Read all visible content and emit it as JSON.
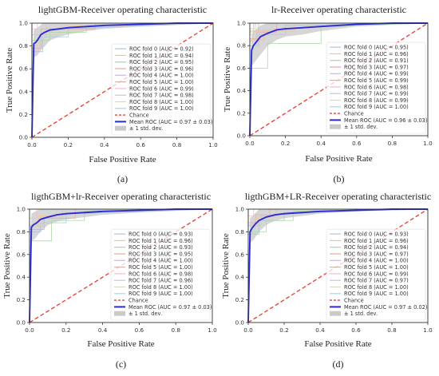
{
  "chart_data": [
    {
      "type": "line",
      "title": "lightGBM-Receiver operating characteristic",
      "xlabel": "False Positive Rate",
      "ylabel": "True Positive Rate",
      "caption": "(a)",
      "xlim": [
        0.0,
        1.0
      ],
      "ylim": [
        0.0,
        1.0
      ],
      "xticks": [
        "0.0",
        "0.2",
        "0.4",
        "0.6",
        "0.8",
        "1.0"
      ],
      "yticks": [
        "0.0",
        "0.2",
        "0.4",
        "0.6",
        "0.8",
        "1.0"
      ],
      "grid": false,
      "legend_position": "lower-right",
      "legend": [
        "ROC fold 0 (AUC = 0.92)",
        "ROC fold 1 (AUC = 0.94)",
        "ROC fold 2 (AUC = 0.95)",
        "ROC fold 3 (AUC = 0.96)",
        "ROC fold 4 (AUC = 1.00)",
        "ROC fold 5 (AUC = 1.00)",
        "ROC fold 6 (AUC = 0.99)",
        "ROC fold 7 (AUC = 0.98)",
        "ROC fold 8 (AUC = 1.00)",
        "ROC fold 9 (AUC = 1.00)",
        "Chance",
        "Mean ROC (AUC = 0.97 ± 0.03)",
        "± 1 std. dev."
      ],
      "mean_roc": {
        "x": [
          0.0,
          0.01,
          0.02,
          0.03,
          0.05,
          0.07,
          0.1,
          0.15,
          0.2,
          0.3,
          0.4,
          0.6,
          0.8,
          1.0
        ],
        "y": [
          0.0,
          0.82,
          0.83,
          0.85,
          0.9,
          0.92,
          0.94,
          0.95,
          0.96,
          0.97,
          0.98,
          0.99,
          1.0,
          1.0
        ]
      },
      "std_band": {
        "x": [
          0.0,
          0.01,
          0.03,
          0.06,
          0.1,
          0.15,
          0.2,
          0.3,
          0.4,
          0.6,
          1.0
        ],
        "upper": [
          0.0,
          0.94,
          0.96,
          1.0,
          1.0,
          1.0,
          1.0,
          1.0,
          1.0,
          1.0,
          1.0
        ],
        "lower": [
          0.0,
          0.7,
          0.72,
          0.78,
          0.85,
          0.88,
          0.9,
          0.93,
          0.95,
          0.97,
          1.0
        ]
      },
      "folds": [
        {
          "x": [
            0,
            0,
            0.06,
            0.06,
            0.2,
            0.2,
            1
          ],
          "y": [
            0,
            0.75,
            0.75,
            0.88,
            0.88,
            0.95,
            1
          ]
        },
        {
          "x": [
            0,
            0,
            0.04,
            0.04,
            0.15,
            0.15,
            1
          ],
          "y": [
            0,
            0.8,
            0.8,
            0.9,
            0.9,
            0.97,
            1
          ]
        },
        {
          "x": [
            0,
            0,
            0.1,
            0.1,
            0.3,
            0.3,
            1
          ],
          "y": [
            0,
            0.85,
            0.85,
            0.92,
            0.92,
            0.98,
            1
          ]
        },
        {
          "x": [
            0,
            0,
            0.05,
            0.05,
            0.35,
            0.35,
            1
          ],
          "y": [
            0,
            0.78,
            0.78,
            0.95,
            0.95,
            1,
            1
          ]
        },
        {
          "x": [
            0,
            0,
            1
          ],
          "y": [
            0,
            1,
            1
          ]
        },
        {
          "x": [
            0,
            0,
            1
          ],
          "y": [
            0,
            1,
            1
          ]
        },
        {
          "x": [
            0,
            0,
            0.03,
            0.03,
            1
          ],
          "y": [
            0,
            0.95,
            0.95,
            1,
            1
          ]
        },
        {
          "x": [
            0,
            0,
            0.08,
            0.08,
            1
          ],
          "y": [
            0,
            0.9,
            0.9,
            1,
            1
          ]
        },
        {
          "x": [
            0,
            0,
            1
          ],
          "y": [
            0,
            1,
            1
          ]
        },
        {
          "x": [
            0,
            0,
            1
          ],
          "y": [
            0,
            1,
            1
          ]
        }
      ]
    },
    {
      "type": "line",
      "title": "lr-Receiver operating characteristic",
      "xlabel": "False Positive Rate",
      "ylabel": "True Positive Rate",
      "caption": "(b)",
      "xlim": [
        0.0,
        1.0
      ],
      "ylim": [
        0.0,
        1.0
      ],
      "xticks": [
        "0.0",
        "0.2",
        "0.4",
        "0.6",
        "0.8",
        "1.0"
      ],
      "yticks": [
        "0.0",
        "0.2",
        "0.4",
        "0.6",
        "0.8",
        "1.0"
      ],
      "grid": false,
      "legend_position": "lower-right",
      "legend": [
        "ROC fold 0 (AUC = 0.95)",
        "ROC fold 1 (AUC = 0.96)",
        "ROC fold 2 (AUC = 0.91)",
        "ROC fold 3 (AUC = 0.97)",
        "ROC fold 4 (AUC = 0.99)",
        "ROC fold 5 (AUC = 0.99)",
        "ROC fold 6 (AUC = 0.98)",
        "ROC fold 7 (AUC = 0.99)",
        "ROC fold 8 (AUC = 0.99)",
        "ROC fold 9 (AUC = 1.00)",
        "Chance",
        "Mean ROC (AUC = 0.96 ± 0.03)",
        "± 1 std. dev."
      ],
      "mean_roc": {
        "x": [
          0.0,
          0.01,
          0.02,
          0.04,
          0.06,
          0.1,
          0.15,
          0.2,
          0.3,
          0.4,
          0.6,
          0.8,
          1.0
        ],
        "y": [
          0.0,
          0.76,
          0.8,
          0.84,
          0.88,
          0.91,
          0.94,
          0.95,
          0.96,
          0.97,
          0.99,
          1.0,
          1.0
        ]
      },
      "std_band": {
        "x": [
          0.0,
          0.01,
          0.03,
          0.06,
          0.1,
          0.15,
          0.2,
          0.3,
          0.4,
          0.6,
          1.0
        ],
        "upper": [
          0.0,
          0.9,
          0.94,
          0.98,
          1.0,
          1.0,
          1.0,
          1.0,
          1.0,
          1.0,
          1.0
        ],
        "lower": [
          0.0,
          0.62,
          0.66,
          0.72,
          0.8,
          0.85,
          0.88,
          0.9,
          0.93,
          0.97,
          1.0
        ]
      },
      "folds": [
        {
          "x": [
            0,
            0,
            0.05,
            0.05,
            0.2,
            0.2,
            1
          ],
          "y": [
            0,
            0.8,
            0.8,
            0.9,
            0.9,
            0.98,
            1
          ]
        },
        {
          "x": [
            0,
            0,
            0.08,
            0.08,
            0.25,
            0.25,
            1
          ],
          "y": [
            0,
            0.85,
            0.85,
            0.93,
            0.93,
            1,
            1
          ]
        },
        {
          "x": [
            0,
            0,
            0.1,
            0.1,
            0.4,
            0.4,
            1
          ],
          "y": [
            0,
            0.6,
            0.6,
            0.82,
            0.82,
            0.97,
            1
          ]
        },
        {
          "x": [
            0,
            0,
            0.04,
            0.04,
            0.15,
            0.15,
            1
          ],
          "y": [
            0,
            0.86,
            0.86,
            0.92,
            0.92,
            1,
            1
          ]
        },
        {
          "x": [
            0,
            0,
            0.03,
            0.03,
            1
          ],
          "y": [
            0,
            0.95,
            0.95,
            1,
            1
          ]
        },
        {
          "x": [
            0,
            0,
            0.05,
            0.05,
            1
          ],
          "y": [
            0,
            0.93,
            0.93,
            1,
            1
          ]
        },
        {
          "x": [
            0,
            0,
            0.06,
            0.06,
            0.12,
            0.12,
            1
          ],
          "y": [
            0,
            0.84,
            0.84,
            0.94,
            0.94,
            1,
            1
          ]
        },
        {
          "x": [
            0,
            0,
            0.02,
            0.02,
            1
          ],
          "y": [
            0,
            0.9,
            0.9,
            1,
            1
          ]
        },
        {
          "x": [
            0,
            0,
            0.04,
            0.04,
            1
          ],
          "y": [
            0,
            0.92,
            0.92,
            1,
            1
          ]
        },
        {
          "x": [
            0,
            0,
            1
          ],
          "y": [
            0,
            1,
            1
          ]
        }
      ]
    },
    {
      "type": "line",
      "title": "ligthGBM+lr-Receiver operating characteristic",
      "xlabel": "False Positive Rate",
      "ylabel": "True Positive Rate",
      "caption": "(c)",
      "xlim": [
        0.0,
        1.0
      ],
      "ylim": [
        0.0,
        1.0
      ],
      "xticks": [
        "0.0",
        "0.2",
        "0.4",
        "0.6",
        "0.8",
        "1.0"
      ],
      "yticks": [
        "0.0",
        "0.2",
        "0.4",
        "0.6",
        "0.8",
        "1.0"
      ],
      "grid": false,
      "legend_position": "lower-right",
      "legend": [
        "ROC fold 0 (AUC = 0.93)",
        "ROC fold 1 (AUC = 0.96)",
        "ROC fold 2 (AUC = 0.93)",
        "ROC fold 3 (AUC = 0.95)",
        "ROC fold 4 (AUC = 1.00)",
        "ROC fold 5 (AUC = 1.00)",
        "ROC fold 6 (AUC = 0.98)",
        "ROC fold 7 (AUC = 0.96)",
        "ROC fold 8 (AUC = 1.00)",
        "ROC fold 9 (AUC = 1.00)",
        "Chance",
        "Mean ROC (AUC = 0.97 ± 0.03)",
        "± 1 std. dev."
      ],
      "mean_roc": {
        "x": [
          0.0,
          0.01,
          0.02,
          0.04,
          0.06,
          0.1,
          0.15,
          0.2,
          0.3,
          0.4,
          0.6,
          0.8,
          1.0
        ],
        "y": [
          0.0,
          0.84,
          0.86,
          0.88,
          0.91,
          0.93,
          0.95,
          0.96,
          0.97,
          0.98,
          0.99,
          1.0,
          1.0
        ]
      },
      "std_band": {
        "x": [
          0.0,
          0.01,
          0.03,
          0.06,
          0.1,
          0.15,
          0.2,
          0.3,
          0.4,
          0.6,
          1.0
        ],
        "upper": [
          0.0,
          0.96,
          0.98,
          1.0,
          1.0,
          1.0,
          1.0,
          1.0,
          1.0,
          1.0,
          1.0
        ],
        "lower": [
          0.0,
          0.72,
          0.74,
          0.8,
          0.86,
          0.89,
          0.91,
          0.93,
          0.95,
          0.97,
          1.0
        ]
      },
      "folds": [
        {
          "x": [
            0,
            0,
            0.06,
            0.06,
            0.2,
            0.2,
            1
          ],
          "y": [
            0,
            0.8,
            0.8,
            0.88,
            0.88,
            0.96,
            1
          ]
        },
        {
          "x": [
            0,
            0,
            0.05,
            0.05,
            0.15,
            0.15,
            1
          ],
          "y": [
            0,
            0.86,
            0.86,
            0.94,
            0.94,
            1,
            1
          ]
        },
        {
          "x": [
            0,
            0,
            0.12,
            0.12,
            0.3,
            0.3,
            1
          ],
          "y": [
            0,
            0.72,
            0.72,
            0.9,
            0.9,
            0.98,
            1
          ]
        },
        {
          "x": [
            0,
            0,
            0.08,
            0.08,
            0.25,
            0.25,
            1
          ],
          "y": [
            0,
            0.82,
            0.82,
            0.92,
            0.92,
            1,
            1
          ]
        },
        {
          "x": [
            0,
            0,
            1
          ],
          "y": [
            0,
            1,
            1
          ]
        },
        {
          "x": [
            0,
            0,
            1
          ],
          "y": [
            0,
            1,
            1
          ]
        },
        {
          "x": [
            0,
            0,
            0.04,
            0.04,
            1
          ],
          "y": [
            0,
            0.92,
            0.92,
            1,
            1
          ]
        },
        {
          "x": [
            0,
            0,
            0.07,
            0.07,
            0.18,
            0.18,
            1
          ],
          "y": [
            0,
            0.85,
            0.85,
            0.93,
            0.93,
            1,
            1
          ]
        },
        {
          "x": [
            0,
            0,
            1
          ],
          "y": [
            0,
            1,
            1
          ]
        },
        {
          "x": [
            0,
            0,
            1
          ],
          "y": [
            0,
            1,
            1
          ]
        }
      ]
    },
    {
      "type": "line",
      "title": "ligthGBM+LR-Receiver operating characteristic",
      "xlabel": "False Positive Rate",
      "ylabel": "True Positive Rate",
      "caption": "(d)",
      "xlim": [
        0.0,
        1.0
      ],
      "ylim": [
        0.0,
        1.0
      ],
      "xticks": [
        "0.0",
        "0.2",
        "0.4",
        "0.6",
        "0.8",
        "1.0"
      ],
      "yticks": [
        "0.0",
        "0.2",
        "0.4",
        "0.6",
        "0.8",
        "1.0"
      ],
      "grid": false,
      "legend_position": "lower-right",
      "legend": [
        "ROC fold 0 (AUC = 0.93)",
        "ROC fold 1 (AUC = 0.96)",
        "ROC fold 2 (AUC = 0.94)",
        "ROC fold 3 (AUC = 0.97)",
        "ROC fold 4 (AUC = 1.00)",
        "ROC fold 5 (AUC = 1.00)",
        "ROC fold 6 (AUC = 0.99)",
        "ROC fold 7 (AUC = 0.97)",
        "ROC fold 8 (AUC = 1.00)",
        "ROC fold 9 (AUC = 1.00)",
        "Chance",
        "Mean ROC (AUC = 0.97 ± 0.02)",
        "± 1 std. dev."
      ],
      "mean_roc": {
        "x": [
          0.0,
          0.01,
          0.02,
          0.04,
          0.06,
          0.1,
          0.15,
          0.2,
          0.3,
          0.4,
          0.6,
          0.8,
          1.0
        ],
        "y": [
          0.0,
          0.8,
          0.83,
          0.87,
          0.9,
          0.93,
          0.95,
          0.96,
          0.97,
          0.98,
          0.99,
          1.0,
          1.0
        ]
      },
      "std_band": {
        "x": [
          0.0,
          0.01,
          0.03,
          0.06,
          0.1,
          0.15,
          0.2,
          0.3,
          0.4,
          0.6,
          1.0
        ],
        "upper": [
          0.0,
          0.92,
          0.95,
          1.0,
          1.0,
          1.0,
          1.0,
          1.0,
          1.0,
          1.0,
          1.0
        ],
        "lower": [
          0.0,
          0.7,
          0.73,
          0.8,
          0.86,
          0.9,
          0.92,
          0.94,
          0.96,
          0.98,
          1.0
        ]
      },
      "folds": [
        {
          "x": [
            0,
            0,
            0.06,
            0.06,
            0.2,
            0.2,
            1
          ],
          "y": [
            0,
            0.78,
            0.78,
            0.9,
            0.9,
            0.97,
            1
          ]
        },
        {
          "x": [
            0,
            0,
            0.05,
            0.05,
            0.15,
            0.15,
            1
          ],
          "y": [
            0,
            0.85,
            0.85,
            0.93,
            0.93,
            1,
            1
          ]
        },
        {
          "x": [
            0,
            0,
            0.1,
            0.1,
            0.25,
            0.25,
            1
          ],
          "y": [
            0,
            0.8,
            0.8,
            0.9,
            0.9,
            0.98,
            1
          ]
        },
        {
          "x": [
            0,
            0,
            0.04,
            0.04,
            0.12,
            0.12,
            1
          ],
          "y": [
            0,
            0.88,
            0.88,
            0.95,
            0.95,
            1,
            1
          ]
        },
        {
          "x": [
            0,
            0,
            1
          ],
          "y": [
            0,
            1,
            1
          ]
        },
        {
          "x": [
            0,
            0,
            1
          ],
          "y": [
            0,
            1,
            1
          ]
        },
        {
          "x": [
            0,
            0,
            0.03,
            0.03,
            1
          ],
          "y": [
            0,
            0.94,
            0.94,
            1,
            1
          ]
        },
        {
          "x": [
            0,
            0,
            0.07,
            0.07,
            0.16,
            0.16,
            1
          ],
          "y": [
            0,
            0.86,
            0.86,
            0.94,
            0.94,
            1,
            1
          ]
        },
        {
          "x": [
            0,
            0,
            1
          ],
          "y": [
            0,
            1,
            1
          ]
        },
        {
          "x": [
            0,
            0,
            1
          ],
          "y": [
            0,
            1,
            1
          ]
        }
      ]
    }
  ],
  "colors": {
    "mean_roc": "#2b2bd6",
    "chance": "#e8463a",
    "std_band": "#b4b4b4",
    "fold_palette": [
      "#a9c4e4",
      "#f5c48e",
      "#a8d8a0",
      "#eba6a6",
      "#cdb9e0",
      "#d2b6ad",
      "#f0bcd8",
      "#c8c8c8",
      "#dede9c",
      "#9ddde6"
    ]
  }
}
